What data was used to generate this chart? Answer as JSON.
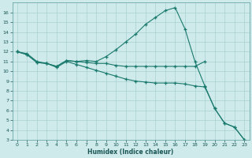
{
  "xlabel": "Humidex (Indice chaleur)",
  "bg_color": "#ceeaea",
  "line_color": "#1a7a6e",
  "grid_color": "#aacfcf",
  "xlim": [
    -0.5,
    23.5
  ],
  "ylim": [
    3,
    17
  ],
  "yticks": [
    3,
    4,
    5,
    6,
    7,
    8,
    9,
    10,
    11,
    12,
    13,
    14,
    15,
    16
  ],
  "xticks": [
    0,
    1,
    2,
    3,
    4,
    5,
    6,
    7,
    8,
    9,
    10,
    11,
    12,
    13,
    14,
    15,
    16,
    17,
    18,
    19,
    20,
    21,
    22,
    23
  ],
  "line1_x": [
    0,
    1,
    2,
    3,
    4,
    5,
    6,
    7,
    8,
    9,
    10,
    11,
    12,
    13,
    14,
    15,
    16,
    17,
    18,
    19
  ],
  "line1_y": [
    12.0,
    11.7,
    10.9,
    10.8,
    10.5,
    11.1,
    11.0,
    10.9,
    10.8,
    10.8,
    10.6,
    10.5,
    10.5,
    10.5,
    10.5,
    10.5,
    10.5,
    10.5,
    10.5,
    11.0
  ],
  "line2_x": [
    0,
    1,
    2,
    3,
    4,
    5,
    6,
    7,
    8,
    9,
    10,
    11,
    12,
    13,
    14,
    15,
    16,
    17,
    18,
    19,
    20,
    21,
    22,
    23
  ],
  "line2_y": [
    12.0,
    11.8,
    11.0,
    10.8,
    10.5,
    11.1,
    11.0,
    11.1,
    11.0,
    11.5,
    12.2,
    13.0,
    13.8,
    14.8,
    15.5,
    16.2,
    16.5,
    14.3,
    11.0,
    8.5,
    6.2,
    4.7,
    4.3,
    3.0
  ],
  "line3_x": [
    0,
    1,
    2,
    3,
    4,
    5,
    6,
    7,
    8,
    9,
    10,
    11,
    12,
    13,
    14,
    15,
    16,
    17,
    18,
    19,
    20,
    21,
    22,
    23
  ],
  "line3_y": [
    12.0,
    11.7,
    10.9,
    10.8,
    10.4,
    11.0,
    10.7,
    10.4,
    10.1,
    9.8,
    9.5,
    9.2,
    9.0,
    8.9,
    8.8,
    8.8,
    8.8,
    8.7,
    8.5,
    8.4,
    6.2,
    4.7,
    4.3,
    3.0
  ]
}
